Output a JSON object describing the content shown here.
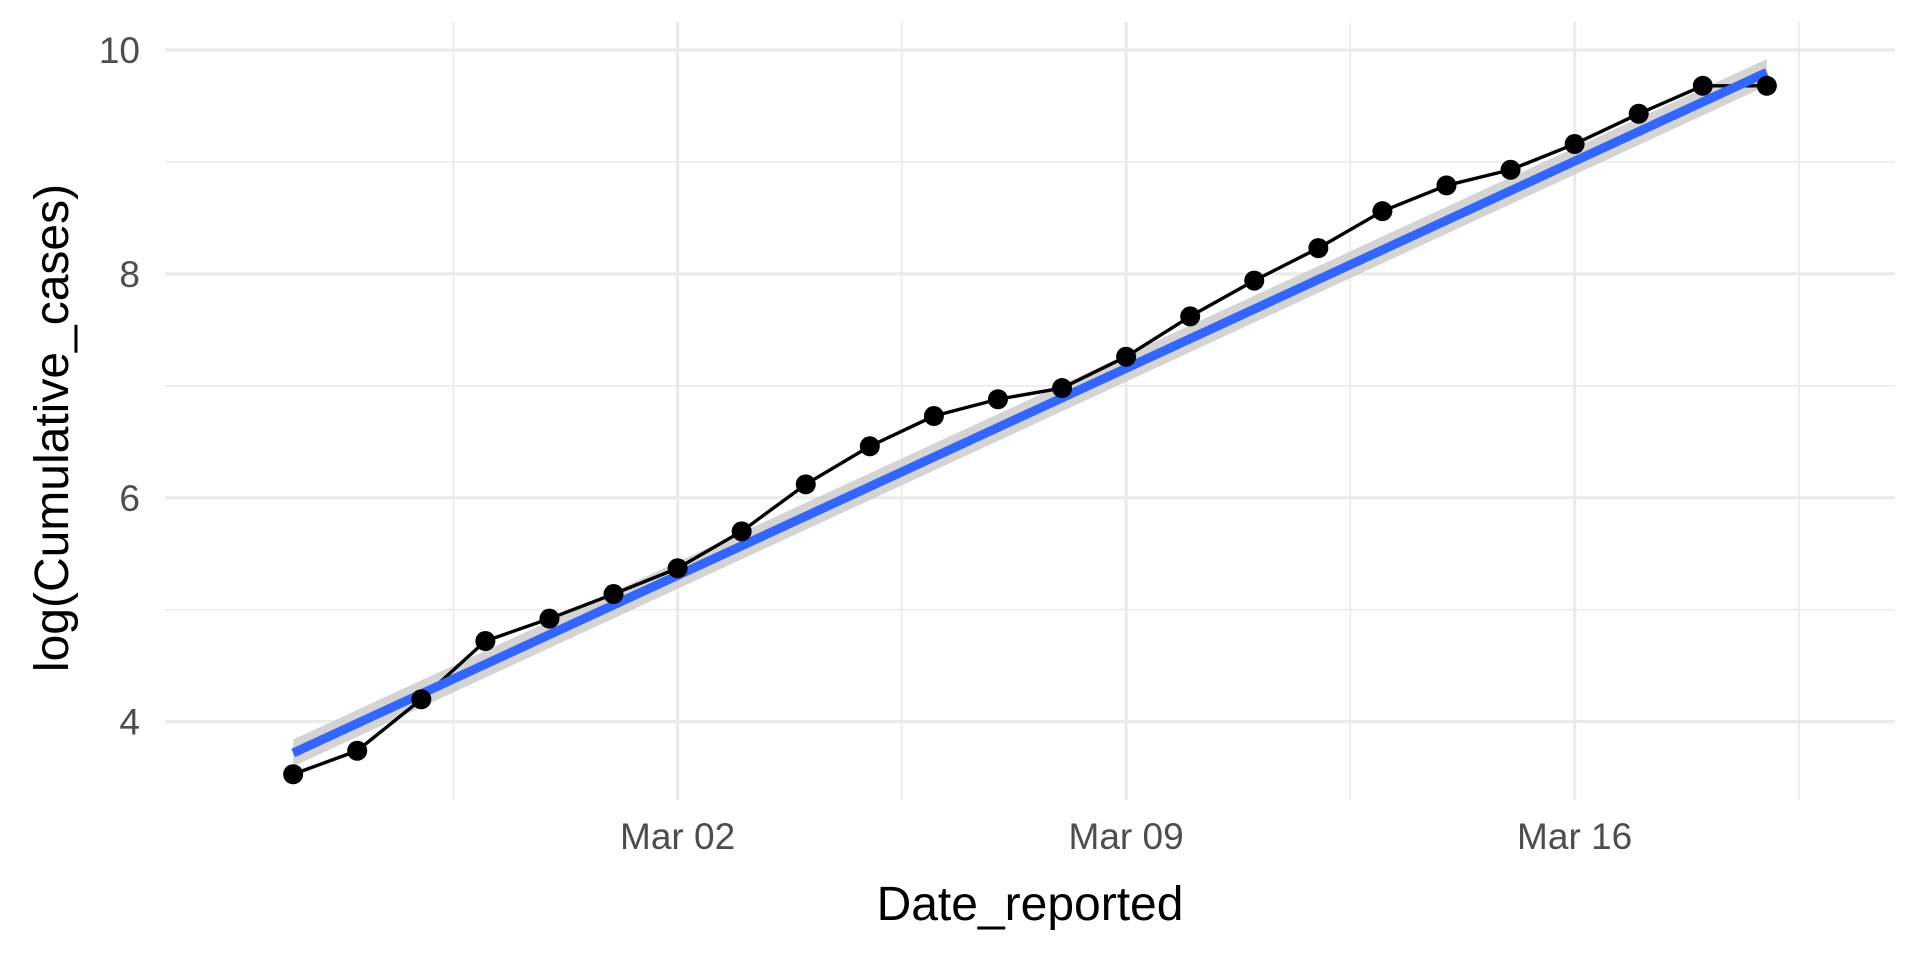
{
  "chart_data": {
    "type": "line",
    "title": "",
    "xlabel": "Date_reported",
    "ylabel": "log(Cumulative_cases)",
    "x_ticks": [
      {
        "date": "2020-03-02",
        "label": "Mar 02"
      },
      {
        "date": "2020-03-09",
        "label": "Mar 09"
      },
      {
        "date": "2020-03-16",
        "label": "Mar 16"
      }
    ],
    "y_ticks": [
      4,
      6,
      8,
      10
    ],
    "xlim": [
      "2020-02-23",
      "2020-03-21"
    ],
    "ylim": [
      3.3,
      10.25
    ],
    "grid": true,
    "series": [
      {
        "style": "line-with-points",
        "color": "#000000",
        "x": [
          "2020-02-25",
          "2020-02-26",
          "2020-02-27",
          "2020-02-28",
          "2020-02-29",
          "2020-03-01",
          "2020-03-02",
          "2020-03-03",
          "2020-03-04",
          "2020-03-05",
          "2020-03-06",
          "2020-03-07",
          "2020-03-08",
          "2020-03-09",
          "2020-03-10",
          "2020-03-11",
          "2020-03-12",
          "2020-03-13",
          "2020-03-14",
          "2020-03-15",
          "2020-03-16",
          "2020-03-17",
          "2020-03-18",
          "2020-03-19"
        ],
        "y": [
          3.53,
          3.74,
          4.2,
          4.72,
          4.92,
          5.14,
          5.37,
          5.7,
          6.12,
          6.46,
          6.73,
          6.88,
          6.98,
          7.26,
          7.62,
          7.94,
          8.23,
          8.56,
          8.79,
          8.93,
          9.16,
          9.43,
          9.68,
          9.68
        ]
      },
      {
        "style": "regression-line",
        "color": "#3366ff",
        "band_color": "#cccccc",
        "x": [
          "2020-02-25",
          "2020-03-19"
        ],
        "y": [
          3.72,
          9.8
        ],
        "band_halfwidth": 0.12
      }
    ]
  }
}
